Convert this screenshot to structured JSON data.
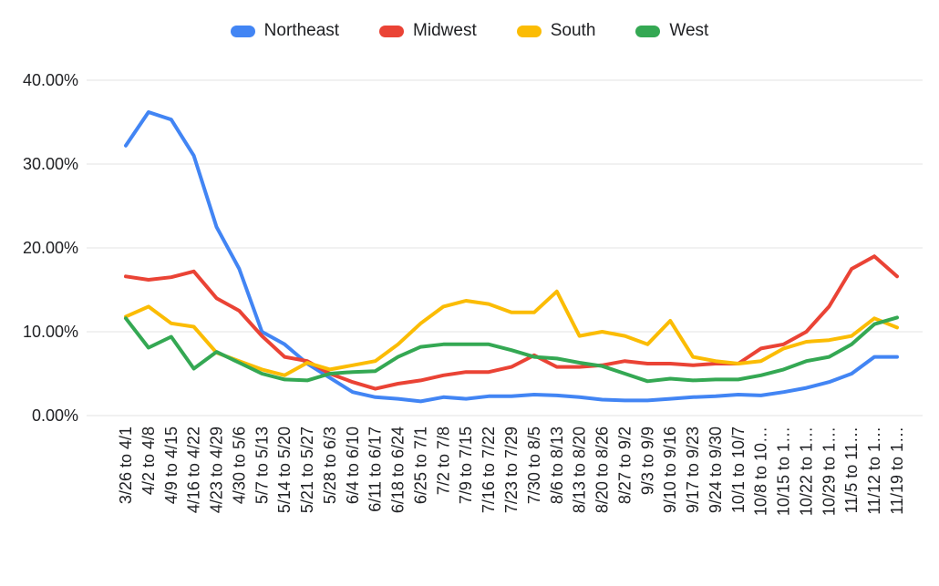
{
  "chart_data": {
    "type": "line",
    "title": "",
    "xlabel": "",
    "ylabel": "",
    "ylim": [
      0,
      40
    ],
    "grid": true,
    "legend_position": "top",
    "background_color": "#ffffff",
    "grid_color": "#e3e3e3",
    "axis_text_color": "#202124",
    "y_ticks": [
      {
        "value": 0,
        "label": "0.00%"
      },
      {
        "value": 10,
        "label": "10.00%"
      },
      {
        "value": 20,
        "label": "20.00%"
      },
      {
        "value": 30,
        "label": "30.00%"
      },
      {
        "value": 40,
        "label": "40.00%"
      }
    ],
    "categories": [
      "3/26 to 4/1",
      "4/2 to 4/8",
      "4/9 to 4/15",
      "4/16 to 4/22",
      "4/23 to 4/29",
      "4/30 to 5/6",
      "5/7 to 5/13",
      "5/14 to 5/20",
      "5/21 to 5/27",
      "5/28 to 6/3",
      "6/4 to 6/10",
      "6/11 to 6/17",
      "6/18 to 6/24",
      "6/25 to 7/1",
      "7/2 to 7/8",
      "7/9 to 7/15",
      "7/16 to 7/22",
      "7/23 to 7/29",
      "7/30 to 8/5",
      "8/6 to 8/13",
      "8/13 to 8/20",
      "8/20 to 8/26",
      "8/27 to 9/2",
      "9/3 to 9/9",
      "9/10 to 9/16",
      "9/17 to 9/23",
      "9/24 to 9/30",
      "10/1 to 10/7",
      "10/8 to 10…",
      "10/15 to 1…",
      "10/22 to 1…",
      "10/29 to 1…",
      "11/5 to 11…",
      "11/12 to 1…",
      "11/19 to 1…"
    ],
    "series": [
      {
        "name": "Northeast",
        "color": "#4285F4",
        "values": [
          32.2,
          36.2,
          35.3,
          31.0,
          22.5,
          17.5,
          10.0,
          8.5,
          6.2,
          4.5,
          2.8,
          2.2,
          2.0,
          1.7,
          2.2,
          2.0,
          2.3,
          2.3,
          2.5,
          2.4,
          2.2,
          1.9,
          1.8,
          1.8,
          2.0,
          2.2,
          2.3,
          2.5,
          2.4,
          2.8,
          3.3,
          4.0,
          5.0,
          7.0,
          7.0
        ]
      },
      {
        "name": "Midwest",
        "color": "#EA4335",
        "values": [
          16.6,
          16.2,
          16.5,
          17.2,
          14.0,
          12.5,
          9.5,
          7.0,
          6.5,
          5.0,
          4.0,
          3.2,
          3.8,
          4.2,
          4.8,
          5.2,
          5.2,
          5.8,
          7.2,
          5.8,
          5.8,
          6.0,
          6.5,
          6.2,
          6.2,
          6.0,
          6.2,
          6.2,
          8.0,
          8.5,
          10.0,
          13.0,
          17.5,
          19.0,
          16.6
        ]
      },
      {
        "name": "South",
        "color": "#FBBC04",
        "values": [
          11.8,
          13.0,
          11.0,
          10.6,
          7.5,
          6.5,
          5.5,
          4.8,
          6.3,
          5.5,
          6.0,
          6.5,
          8.5,
          11.0,
          13.0,
          13.7,
          13.3,
          12.3,
          12.3,
          14.8,
          9.5,
          10.0,
          9.5,
          8.5,
          11.3,
          7.0,
          6.5,
          6.2,
          6.5,
          8.0,
          8.8,
          9.0,
          9.5,
          11.6,
          10.5
        ]
      },
      {
        "name": "West",
        "color": "#34A853",
        "values": [
          11.6,
          8.1,
          9.4,
          5.6,
          7.6,
          6.3,
          5.0,
          4.3,
          4.2,
          5.0,
          5.2,
          5.3,
          7.0,
          8.2,
          8.5,
          8.5,
          8.5,
          7.8,
          7.0,
          6.8,
          6.3,
          5.9,
          5.0,
          4.1,
          4.4,
          4.2,
          4.3,
          4.3,
          4.8,
          5.5,
          6.5,
          7.0,
          8.5,
          10.9,
          11.7
        ]
      }
    ]
  }
}
